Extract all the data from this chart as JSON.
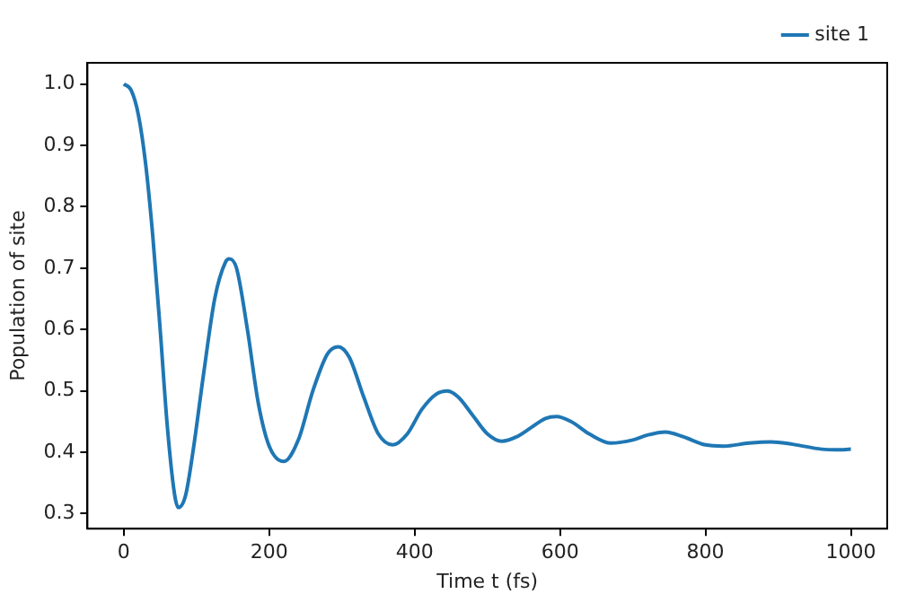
{
  "chart_data": {
    "type": "line",
    "xlabel": "Time t (fs)",
    "ylabel": "Population of site",
    "x": [
      0,
      10,
      20,
      30,
      40,
      50,
      60,
      70,
      75,
      85,
      95,
      110,
      125,
      140,
      145,
      155,
      170,
      185,
      200,
      220,
      240,
      260,
      280,
      295,
      310,
      330,
      350,
      370,
      390,
      410,
      430,
      445,
      460,
      480,
      500,
      520,
      540,
      560,
      580,
      595,
      615,
      640,
      670,
      700,
      720,
      745,
      770,
      800,
      825,
      860,
      890,
      920,
      960,
      980,
      1000
    ],
    "series": [
      {
        "name": "site 1",
        "color": "#1f77b4",
        "values": [
          1.0,
          0.99,
          0.95,
          0.87,
          0.75,
          0.6,
          0.44,
          0.33,
          0.31,
          0.33,
          0.4,
          0.53,
          0.65,
          0.71,
          0.715,
          0.7,
          0.6,
          0.48,
          0.41,
          0.385,
          0.42,
          0.5,
          0.56,
          0.572,
          0.555,
          0.49,
          0.43,
          0.412,
          0.43,
          0.47,
          0.495,
          0.5,
          0.49,
          0.46,
          0.43,
          0.418,
          0.425,
          0.44,
          0.455,
          0.458,
          0.45,
          0.43,
          0.415,
          0.42,
          0.428,
          0.433,
          0.425,
          0.412,
          0.41,
          0.415,
          0.417,
          0.413,
          0.405,
          0.404,
          0.405
        ]
      }
    ],
    "xlim": [
      -50,
      1050
    ],
    "xticks": [
      0,
      200,
      400,
      600,
      800,
      1000
    ],
    "ylim": [
      0.2755,
      1.0345
    ],
    "yticks": [
      0.3,
      0.4,
      0.5,
      0.6,
      0.7,
      0.8,
      0.9,
      {
        "value": 1,
        "label": "1.0"
      }
    ],
    "grid": false,
    "legend": "top right",
    "marker": "none",
    "line_style": "solid"
  }
}
